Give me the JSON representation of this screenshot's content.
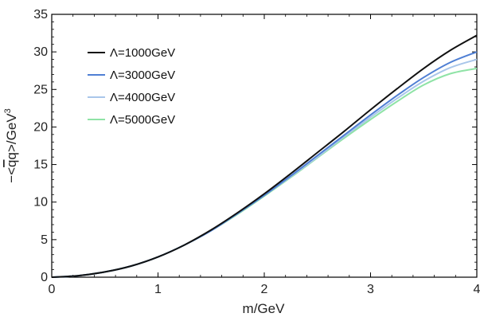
{
  "chart_data": {
    "type": "line",
    "xlabel": "m/GeV",
    "ylabel_parts": {
      "prefix": "−<",
      "quark": "q",
      "antiquark": "q",
      "suffix": ">/GeV",
      "exponent": "3"
    },
    "xlim": [
      0,
      4
    ],
    "ylim": [
      0,
      35
    ],
    "x_ticks": [
      0,
      1,
      2,
      3,
      4
    ],
    "y_ticks": [
      0,
      5,
      10,
      15,
      20,
      25,
      30,
      35
    ],
    "x_tick_labels": [
      "0",
      "1",
      "2",
      "3",
      "4"
    ],
    "y_tick_labels": [
      "0",
      "5",
      "10",
      "15",
      "20",
      "25",
      "30",
      "35"
    ],
    "grid": false,
    "legend_position": "top-left",
    "x": [
      0,
      0.25,
      0.5,
      0.75,
      1.0,
      1.25,
      1.5,
      1.75,
      2.0,
      2.25,
      2.5,
      2.75,
      3.0,
      3.25,
      3.5,
      3.75,
      4.0
    ],
    "series": [
      {
        "name": "Λ=1000GeV",
        "color": "#111111",
        "values": [
          0,
          0.2,
          0.7,
          1.5,
          2.7,
          4.3,
          6.3,
          8.6,
          11.1,
          13.8,
          16.6,
          19.4,
          22.3,
          25.1,
          27.8,
          30.2,
          32.2
        ]
      },
      {
        "name": "Λ=3000GeV",
        "color": "#4f7fd4",
        "values": [
          0,
          0.2,
          0.7,
          1.5,
          2.7,
          4.3,
          6.2,
          8.5,
          10.9,
          13.5,
          16.2,
          18.9,
          21.6,
          24.2,
          26.6,
          28.6,
          30.0
        ]
      },
      {
        "name": "Λ=4000GeV",
        "color": "#a9c6ea",
        "values": [
          0,
          0.2,
          0.7,
          1.5,
          2.7,
          4.3,
          6.2,
          8.5,
          10.9,
          13.4,
          16.0,
          18.7,
          21.3,
          23.8,
          26.1,
          27.9,
          29.0
        ]
      },
      {
        "name": "Λ=5000GeV",
        "color": "#8fe3a6",
        "values": [
          0,
          0.2,
          0.7,
          1.5,
          2.7,
          4.3,
          6.2,
          8.4,
          10.8,
          13.3,
          15.9,
          18.5,
          21.0,
          23.4,
          25.6,
          27.1,
          27.8
        ]
      }
    ]
  }
}
